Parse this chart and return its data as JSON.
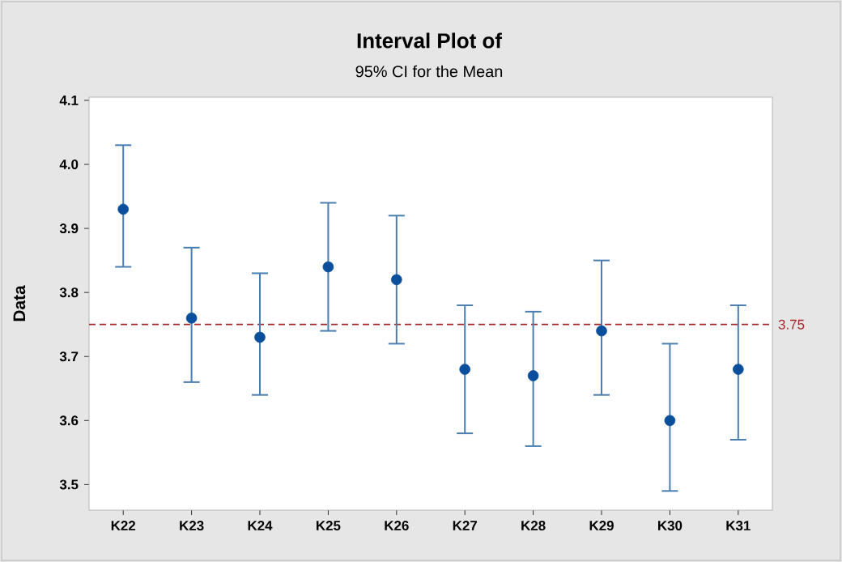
{
  "chart_data": {
    "type": "scatter",
    "title": "Interval Plot of",
    "subtitle": "95% CI for the Mean",
    "ylabel": "Data",
    "categories": [
      "K22",
      "K23",
      "K24",
      "K25",
      "K26",
      "K27",
      "K28",
      "K29",
      "K30",
      "K31"
    ],
    "values": [
      3.93,
      3.76,
      3.73,
      3.84,
      3.82,
      3.68,
      3.67,
      3.74,
      3.6,
      3.68
    ],
    "errors": [
      [
        3.84,
        4.03
      ],
      [
        3.66,
        3.87
      ],
      [
        3.64,
        3.83
      ],
      [
        3.74,
        3.94
      ],
      [
        3.72,
        3.92
      ],
      [
        3.58,
        3.78
      ],
      [
        3.56,
        3.77
      ],
      [
        3.64,
        3.85
      ],
      [
        3.49,
        3.72
      ],
      [
        3.57,
        3.78
      ]
    ],
    "color": "#0a4f9c",
    "marker": "circle",
    "ylim": [
      3.46,
      4.105
    ],
    "yticks": [
      3.5,
      3.6,
      3.7,
      3.8,
      3.9,
      {
        "value": 4.0,
        "label": "4.0"
      },
      4.1
    ],
    "ref_lines": [
      {
        "axis": "y",
        "value": 3.75,
        "label": "3.75",
        "color": "#a5282b",
        "line_style": "dashed"
      }
    ]
  }
}
